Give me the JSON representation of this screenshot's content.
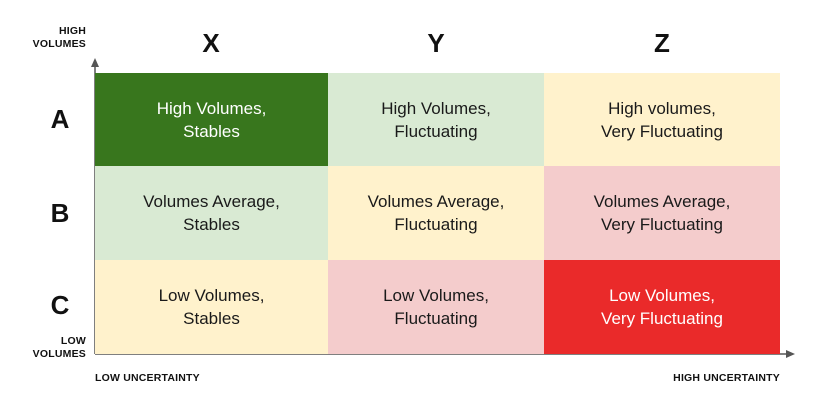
{
  "axes": {
    "y_high": "HIGH\nVOLUMES",
    "y_low": "LOW\nVOLUMES",
    "x_low": "LOW UNCERTAINTY",
    "x_high": "HIGH UNCERTAINTY"
  },
  "columns": [
    "X",
    "Y",
    "Z"
  ],
  "rows": [
    "A",
    "B",
    "C"
  ],
  "cells": [
    {
      "text": "High Volumes,\nStables",
      "bg": "#38761d",
      "fg": "#ffffff"
    },
    {
      "text": "High Volumes,\nFluctuating",
      "bg": "#d9ead3",
      "fg": "#1a1a1a"
    },
    {
      "text": "High volumes,\nVery Fluctuating",
      "bg": "#fff2cc",
      "fg": "#1a1a1a"
    },
    {
      "text": "Volumes Average,\nStables",
      "bg": "#d9ead3",
      "fg": "#1a1a1a"
    },
    {
      "text": "Volumes Average,\nFluctuating",
      "bg": "#fff2cc",
      "fg": "#1a1a1a"
    },
    {
      "text": "Volumes Average,\nVery Fluctuating",
      "bg": "#f4cccc",
      "fg": "#1a1a1a"
    },
    {
      "text": "Low Volumes,\nStables",
      "bg": "#fff2cc",
      "fg": "#1a1a1a"
    },
    {
      "text": "Low Volumes,\nFluctuating",
      "bg": "#f4cccc",
      "fg": "#1a1a1a"
    },
    {
      "text": "Low Volumes,\nVery Fluctuating",
      "bg": "#ea2a2a",
      "fg": "#ffffff"
    }
  ]
}
